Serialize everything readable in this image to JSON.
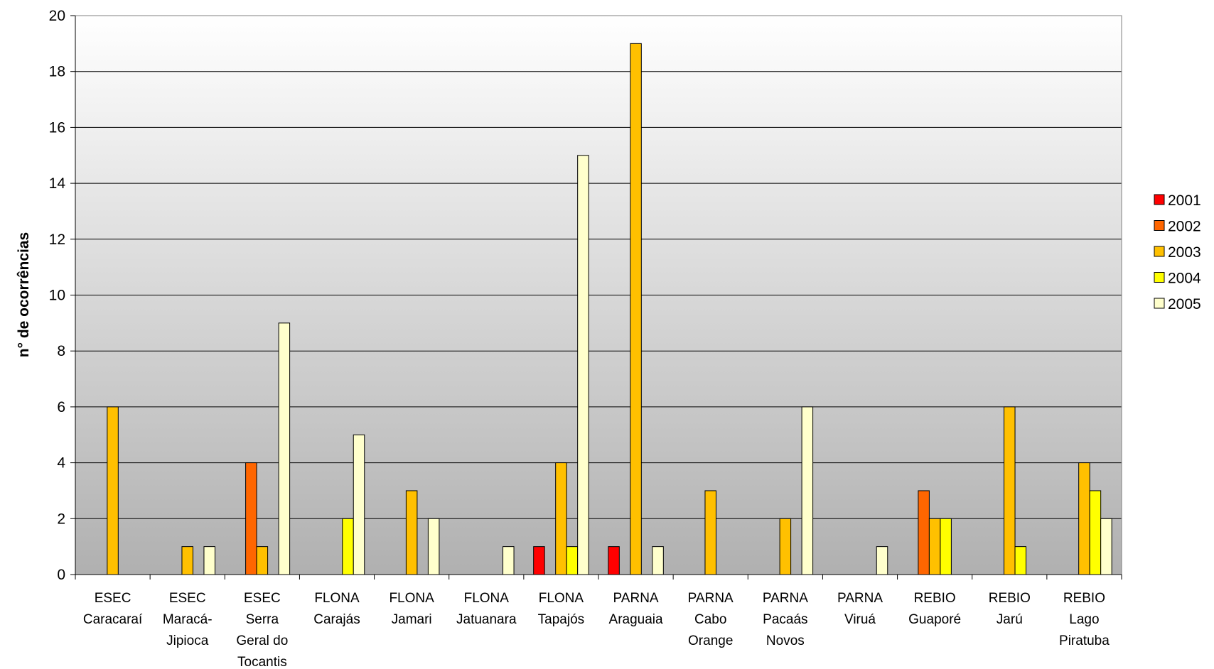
{
  "chart_data": {
    "type": "bar",
    "title": "",
    "xlabel": "",
    "ylabel": "n° de ocorrências",
    "ylim": [
      0,
      20
    ],
    "yticks": [
      0,
      2,
      4,
      6,
      8,
      10,
      12,
      14,
      16,
      18,
      20
    ],
    "grid": true,
    "legend_position": "right",
    "categories": [
      [
        "ESEC",
        "Caracaraí"
      ],
      [
        "ESEC",
        "Maracá-",
        "Jipioca"
      ],
      [
        "ESEC",
        "Serra",
        "Geral do",
        "Tocantis"
      ],
      [
        "FLONA",
        "Carajás"
      ],
      [
        "FLONA",
        "Jamari"
      ],
      [
        "FLONA",
        "Jatuanara"
      ],
      [
        "FLONA",
        "Tapajós"
      ],
      [
        "PARNA",
        "Araguaia"
      ],
      [
        "PARNA",
        "Cabo",
        "Orange"
      ],
      [
        "PARNA",
        "Pacaás",
        "Novos"
      ],
      [
        "PARNA",
        "Viruá"
      ],
      [
        "REBIO",
        "Guaporé"
      ],
      [
        "REBIO",
        "Jarú"
      ],
      [
        "REBIO",
        "Lago",
        "Piratuba"
      ]
    ],
    "series": [
      {
        "name": "2001",
        "color": "#ff0000",
        "values": [
          0,
          0,
          0,
          0,
          0,
          0,
          1,
          1,
          0,
          0,
          0,
          0,
          0,
          0
        ]
      },
      {
        "name": "2002",
        "color": "#ff6600",
        "values": [
          0,
          0,
          4,
          0,
          0,
          0,
          0,
          0,
          0,
          0,
          0,
          3,
          0,
          0
        ]
      },
      {
        "name": "2003",
        "color": "#ffc000",
        "values": [
          6,
          1,
          1,
          0,
          3,
          0,
          4,
          19,
          3,
          2,
          0,
          2,
          6,
          4
        ]
      },
      {
        "name": "2004",
        "color": "#ffff00",
        "values": [
          0,
          0,
          0,
          2,
          0,
          0,
          1,
          0,
          0,
          0,
          0,
          2,
          1,
          3
        ]
      },
      {
        "name": "2005",
        "color": "#ffffcc",
        "values": [
          0,
          1,
          9,
          5,
          2,
          1,
          15,
          1,
          0,
          6,
          1,
          0,
          0,
          2
        ]
      }
    ]
  }
}
